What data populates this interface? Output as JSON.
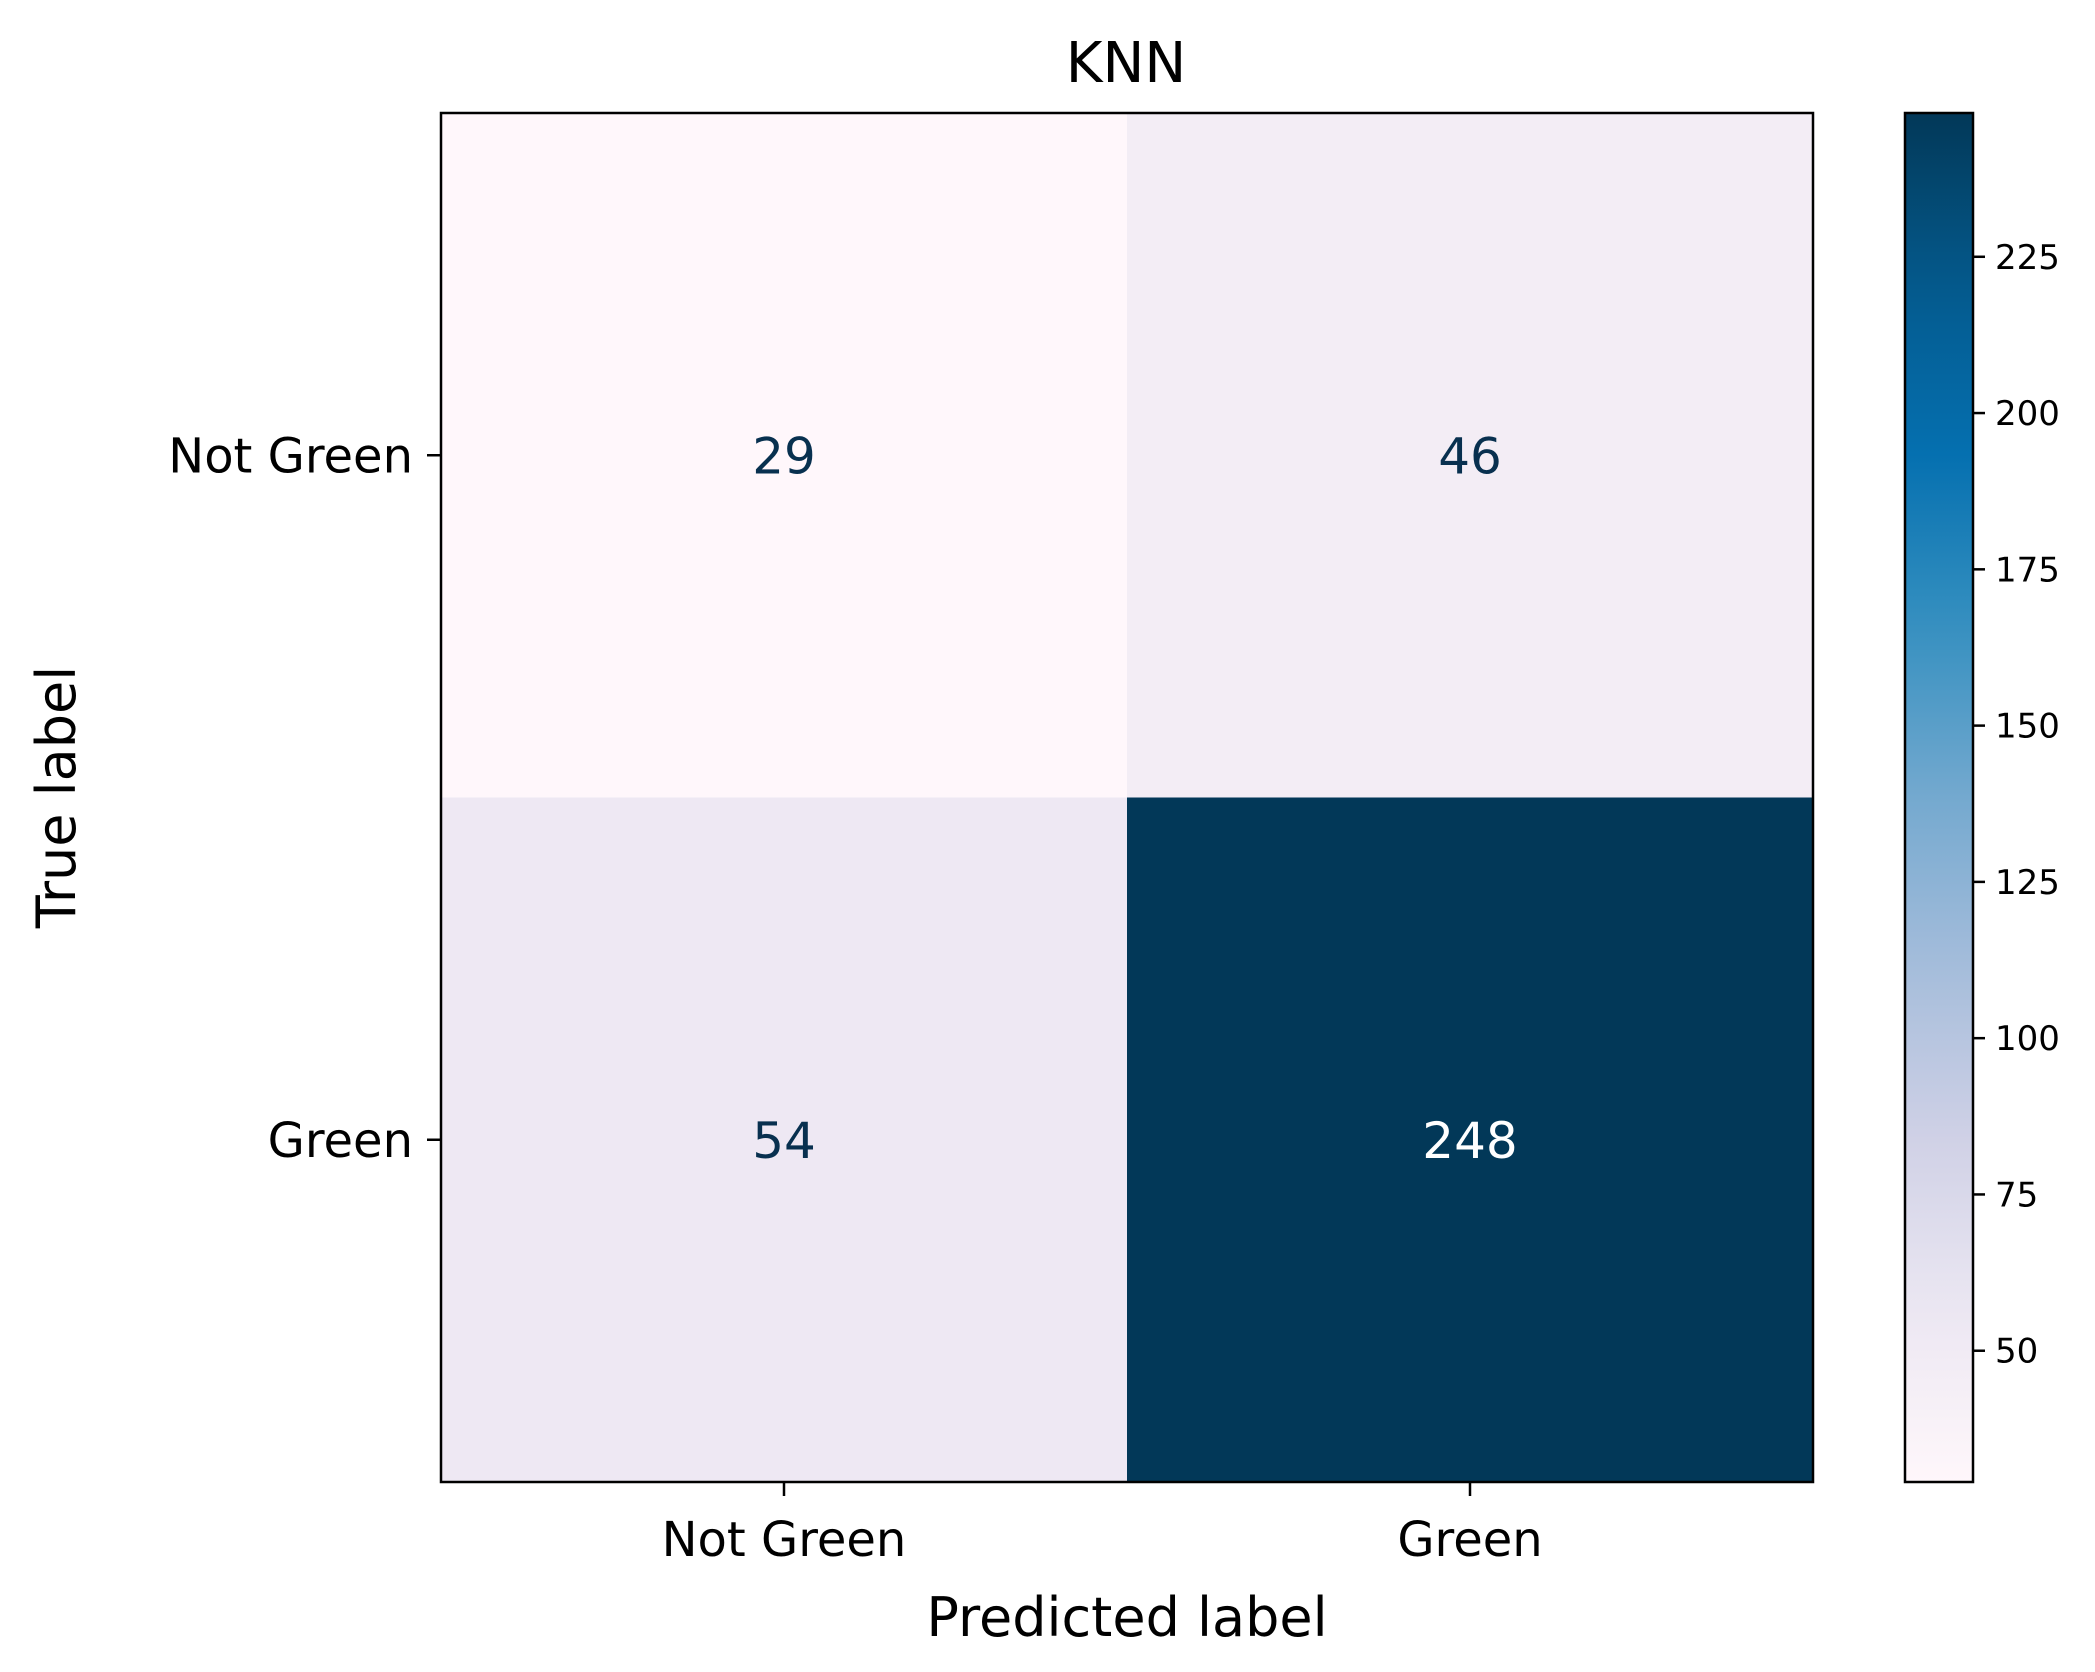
{
  "chart_data": {
    "type": "heatmap",
    "title": "KNN",
    "xlabel": "Predicted label",
    "ylabel": "True label",
    "x_categories": [
      "Not Green",
      "Green"
    ],
    "y_categories": [
      "Not Green",
      "Green"
    ],
    "matrix": [
      [
        29,
        46
      ],
      [
        54,
        248
      ]
    ],
    "colormap": "PuBu",
    "color_range": [
      29,
      248
    ],
    "colorbar_ticks": [
      50,
      75,
      100,
      125,
      150,
      175,
      200,
      225
    ],
    "cell_text_colors": {
      "light": "#ffffff",
      "dark": "#08304f"
    }
  }
}
